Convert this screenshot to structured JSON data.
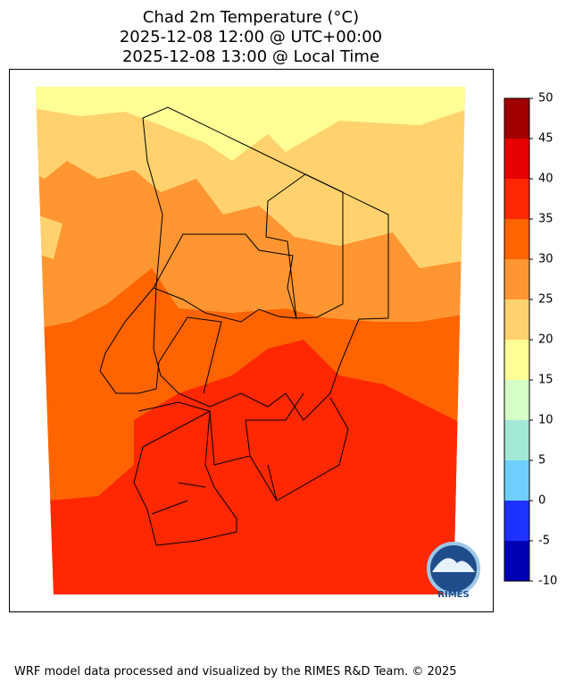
{
  "chart_data": {
    "type": "filled-contour-map",
    "title": [
      "Chad 2m Temperature (°C)",
      "2025-12-08 12:00 @ UTC+00:00",
      "2025-12-08 13:00 @ Local Time"
    ],
    "colorbar": {
      "levels": [
        -10,
        -5,
        0,
        5,
        10,
        15,
        20,
        25,
        30,
        35,
        40,
        45,
        50
      ],
      "colors": [
        "#0000b4",
        "#1e32ff",
        "#6ecfff",
        "#a4e8d8",
        "#d6ffc6",
        "#ffff96",
        "#ffd26e",
        "#ff9632",
        "#ff6400",
        "#ff2800",
        "#e60000",
        "#a00000"
      ],
      "lim": [
        -10,
        50
      ]
    },
    "logo_text": "RIMES",
    "footer": "WRF model data processed and visualized by the RIMES R&D Team. © 2025"
  }
}
